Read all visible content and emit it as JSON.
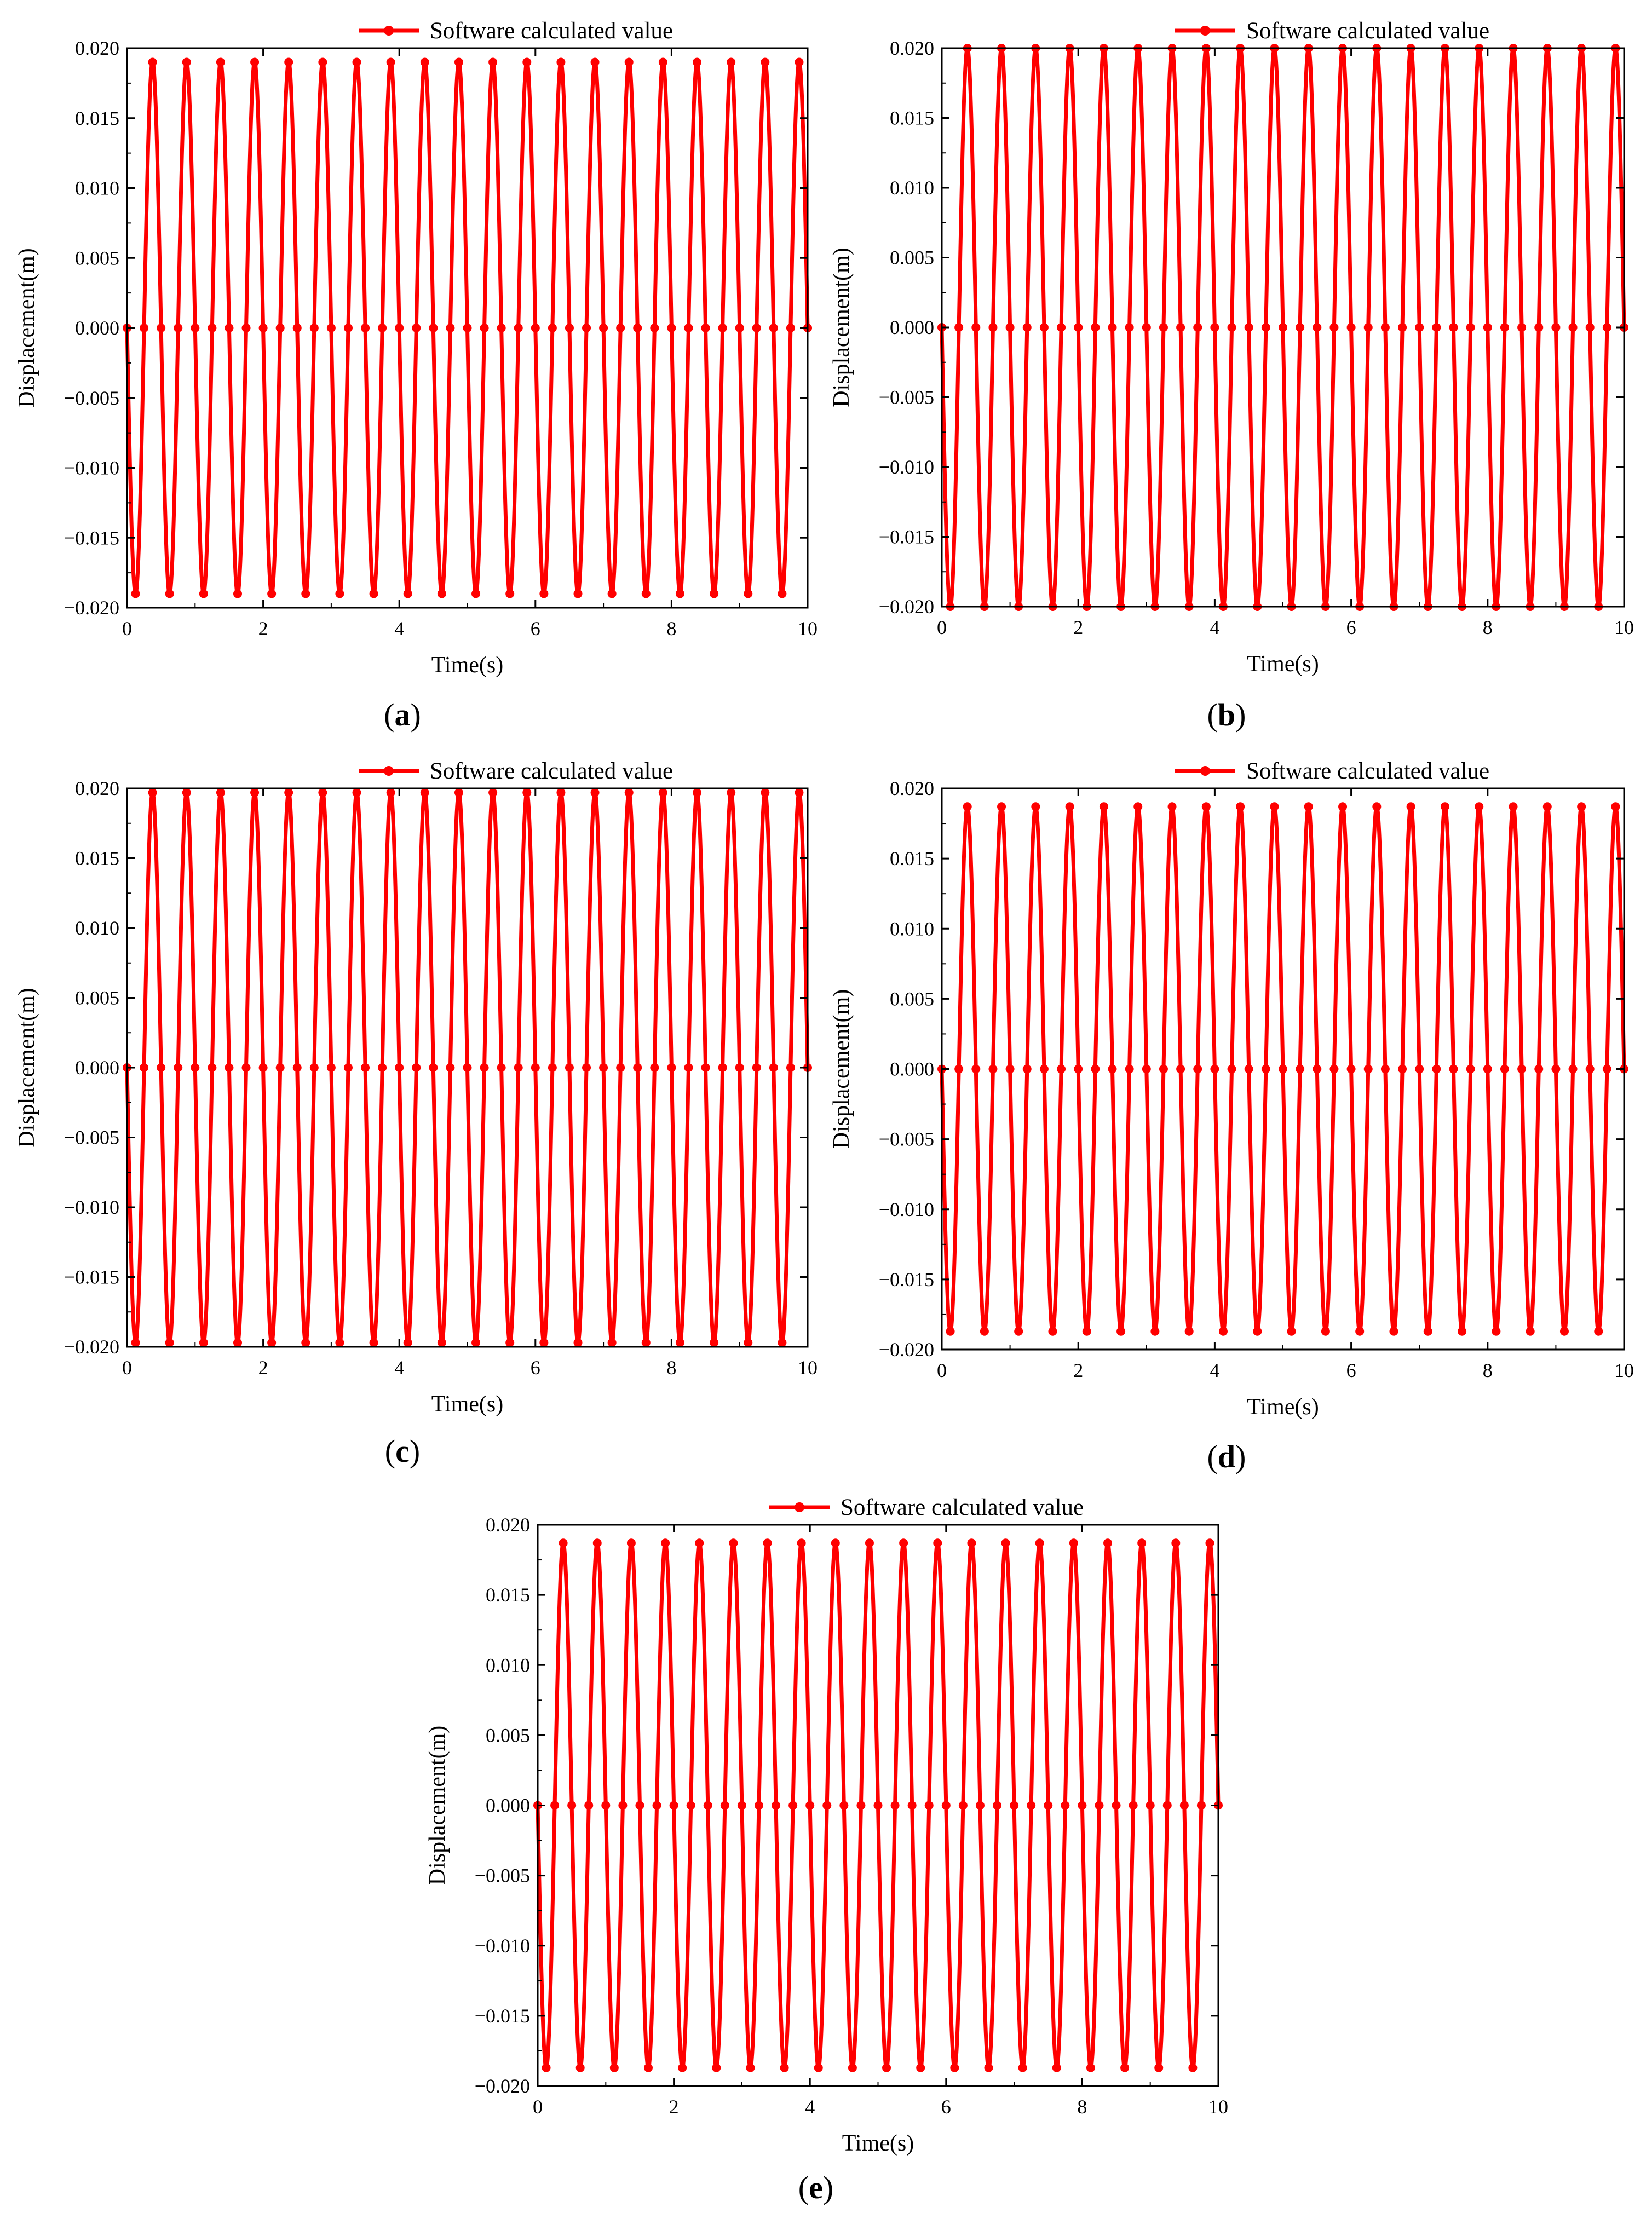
{
  "figure": {
    "panels": [
      {
        "label_open": "(",
        "label_letter": "a",
        "label_close": ")"
      },
      {
        "label_open": "(",
        "label_letter": "b",
        "label_close": ")"
      },
      {
        "label_open": "(",
        "label_letter": "c",
        "label_close": ")"
      },
      {
        "label_open": "(",
        "label_letter": "d",
        "label_close": ")"
      },
      {
        "label_open": "(",
        "label_letter": "e",
        "label_close": ")"
      }
    ]
  },
  "style": {
    "line_color": "#ff0000",
    "axis_color": "#000000",
    "background": "#ffffff"
  },
  "chart_data": [
    {
      "type": "line",
      "title": "",
      "xlabel": "Time(s)",
      "ylabel": "Displacement(m)",
      "xlim": [
        0,
        10
      ],
      "ylim": [
        -0.02,
        0.02
      ],
      "xticks": [
        "0",
        "2",
        "4",
        "6",
        "8",
        "10"
      ],
      "yticks": [
        "-0.020",
        "-0.015",
        "-0.010",
        "-0.005",
        "0.000",
        "0.005",
        "0.010",
        "0.015",
        "0.020"
      ],
      "grid": false,
      "legend_position": "top-right",
      "series": [
        {
          "name": "Software calculated value",
          "amplitude": 0.019,
          "period": 0.5,
          "phase": "negative-start",
          "x_start": 0,
          "x_end": 10,
          "marker": "circle"
        }
      ]
    },
    {
      "type": "line",
      "title": "",
      "xlabel": "Time(s)",
      "ylabel": "Displacement(m)",
      "xlim": [
        0,
        10
      ],
      "ylim": [
        -0.02,
        0.02
      ],
      "xticks": [
        "0",
        "2",
        "4",
        "6",
        "8",
        "10"
      ],
      "yticks": [
        "-0.020",
        "-0.015",
        "-0.010",
        "-0.005",
        "0.000",
        "0.005",
        "0.010",
        "0.015",
        "0.020"
      ],
      "grid": false,
      "legend_position": "top-right",
      "series": [
        {
          "name": "Software calculated value",
          "amplitude": 0.02,
          "period": 0.5,
          "phase": "negative-start",
          "x_start": 0,
          "x_end": 10,
          "marker": "circle"
        }
      ]
    },
    {
      "type": "line",
      "title": "",
      "xlabel": "Time(s)",
      "ylabel": "Displacement(m)",
      "xlim": [
        0,
        10
      ],
      "ylim": [
        -0.02,
        0.02
      ],
      "xticks": [
        "0",
        "2",
        "4",
        "6",
        "8",
        "10"
      ],
      "yticks": [
        "-0.020",
        "-0.015",
        "-0.010",
        "-0.005",
        "0.000",
        "0.005",
        "0.010",
        "0.015",
        "0.020"
      ],
      "grid": false,
      "legend_position": "top-right",
      "series": [
        {
          "name": "Software calculated value",
          "amplitude": 0.0197,
          "period": 0.5,
          "phase": "negative-start",
          "x_start": 0,
          "x_end": 10,
          "marker": "circle"
        }
      ]
    },
    {
      "type": "line",
      "title": "",
      "xlabel": "Time(s)",
      "ylabel": "Displacement(m)",
      "xlim": [
        0,
        10
      ],
      "ylim": [
        -0.02,
        0.02
      ],
      "xticks": [
        "0",
        "2",
        "4",
        "6",
        "8",
        "10"
      ],
      "yticks": [
        "-0.020",
        "-0.015",
        "-0.010",
        "-0.005",
        "0.000",
        "0.005",
        "0.010",
        "0.015",
        "0.020"
      ],
      "grid": false,
      "legend_position": "top-right",
      "series": [
        {
          "name": "Software calculated value",
          "amplitude": 0.0187,
          "period": 0.5,
          "phase": "negative-start",
          "x_start": 0,
          "x_end": 10,
          "marker": "circle"
        }
      ]
    },
    {
      "type": "line",
      "title": "",
      "xlabel": "Time(s)",
      "ylabel": "Displacement(m)",
      "xlim": [
        0,
        10
      ],
      "ylim": [
        -0.02,
        0.02
      ],
      "xticks": [
        "0",
        "2",
        "4",
        "6",
        "8",
        "10"
      ],
      "yticks": [
        "-0.020",
        "-0.015",
        "-0.010",
        "-0.005",
        "0.000",
        "0.005",
        "0.010",
        "0.015",
        "0.020"
      ],
      "grid": false,
      "legend_position": "top-right",
      "series": [
        {
          "name": "Software calculated value",
          "amplitude": 0.0187,
          "period": 0.5,
          "phase": "negative-start",
          "x_start": 0,
          "x_end": 10,
          "marker": "circle"
        }
      ]
    }
  ]
}
